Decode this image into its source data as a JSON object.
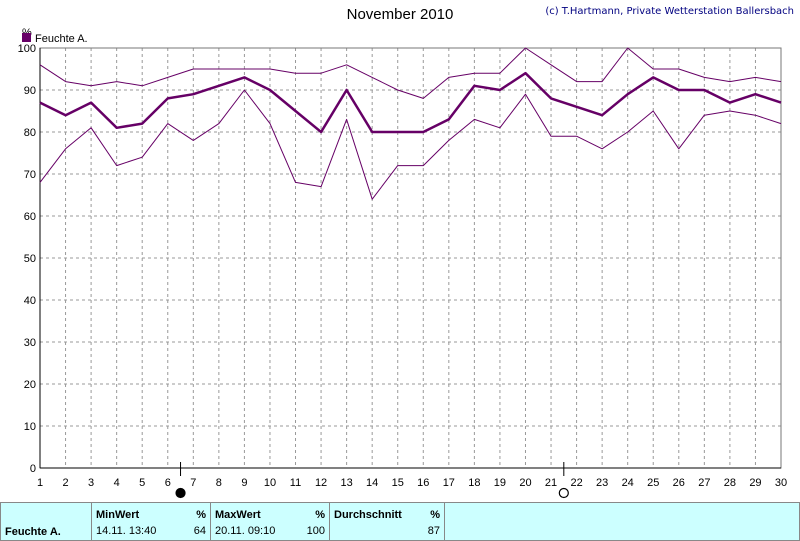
{
  "header": {
    "title": "November 2010",
    "copyright": "(c) T.Hartmann, Private Wetterstation Ballersbach",
    "unit": "%"
  },
  "legend": {
    "label": "Feuchte A."
  },
  "colors": {
    "series": "#660066",
    "grid": "#999999",
    "axis": "#000000",
    "stats_bg": "#ccffff"
  },
  "chart_data": {
    "type": "line",
    "title": "November 2010",
    "ylabel": "%",
    "ylim": [
      0,
      100
    ],
    "yticks": [
      0,
      10,
      20,
      30,
      40,
      50,
      60,
      70,
      80,
      90,
      100
    ],
    "x": [
      1,
      2,
      3,
      4,
      5,
      6,
      7,
      8,
      9,
      10,
      11,
      12,
      13,
      14,
      15,
      16,
      17,
      18,
      19,
      20,
      21,
      22,
      23,
      24,
      25,
      26,
      27,
      28,
      29,
      30
    ],
    "grid": true,
    "legend": "top-left",
    "series": [
      {
        "name": "Feuchte A.",
        "role": "mean",
        "values": [
          87,
          84,
          87,
          81,
          82,
          88,
          89,
          91,
          93,
          90,
          85,
          80,
          90,
          80,
          80,
          80,
          83,
          91,
          90,
          94,
          88,
          86,
          84,
          89,
          93,
          90,
          90,
          87,
          89,
          87
        ]
      },
      {
        "role": "max",
        "values": [
          96,
          92,
          91,
          92,
          91,
          93,
          95,
          95,
          95,
          95,
          94,
          94,
          96,
          93,
          90,
          88,
          93,
          94,
          94,
          100,
          96,
          92,
          92,
          100,
          95,
          95,
          93,
          92,
          93,
          92
        ]
      },
      {
        "role": "min",
        "values": [
          68,
          76,
          81,
          72,
          74,
          82,
          78,
          82,
          90,
          82,
          68,
          67,
          83,
          64,
          72,
          72,
          78,
          83,
          81,
          89,
          79,
          79,
          76,
          80,
          85,
          76,
          84,
          85,
          84,
          82
        ]
      }
    ],
    "moon_markers": [
      {
        "day": 6,
        "phase": "new-moon"
      },
      {
        "day": 21,
        "phase": "full-moon"
      }
    ]
  },
  "stats": {
    "row_label": "Feuchte A.",
    "min": {
      "header": "MinWert",
      "unit": "%",
      "time": "14.11.  13:40",
      "value": "64"
    },
    "max": {
      "header": "MaxWert",
      "unit": "%",
      "time": "20.11.  09:10",
      "value": "100"
    },
    "avg": {
      "header": "Durchschnitt",
      "unit": "%",
      "value": "87"
    }
  }
}
